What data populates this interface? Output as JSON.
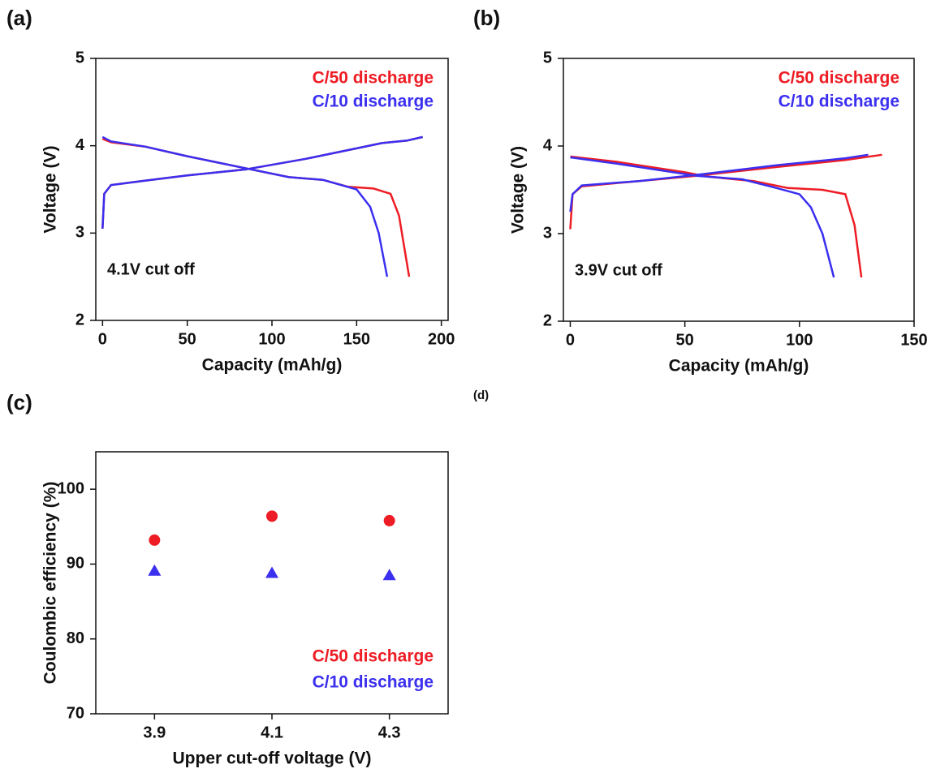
{
  "panel_d_label": "(d)",
  "chart_data": [
    {
      "type": "line",
      "panel_label": "(a)",
      "xlabel": "Capacity (mAh/g)",
      "ylabel": "Voltage (V)",
      "annotation": "4.1V cut off",
      "xlim": [
        -4,
        204
      ],
      "ylim": [
        2,
        5
      ],
      "xticks": [
        0,
        50,
        100,
        150,
        200
      ],
      "yticks": [
        2,
        3,
        4,
        5
      ],
      "legend": "upper right",
      "series": [
        {
          "name": "C/50 discharge",
          "color": "#ee1c24",
          "x": [
            0,
            1,
            5,
            25,
            50,
            85,
            120,
            150,
            165,
            180,
            189,
            null,
            0,
            5,
            25,
            50,
            85,
            110,
            130,
            145,
            160,
            170,
            175,
            181
          ],
          "values": [
            3.05,
            3.45,
            3.55,
            3.6,
            3.66,
            3.73,
            3.85,
            3.97,
            4.03,
            4.06,
            4.1,
            null,
            4.08,
            4.04,
            3.99,
            3.88,
            3.74,
            3.64,
            3.61,
            3.53,
            3.51,
            3.45,
            3.2,
            2.5
          ]
        },
        {
          "name": "C/10 discharge",
          "color": "#3b2ff0",
          "x": [
            0,
            1,
            5,
            25,
            50,
            85,
            120,
            150,
            165,
            180,
            189,
            null,
            0,
            5,
            25,
            50,
            85,
            110,
            130,
            150,
            158,
            163,
            168
          ],
          "values": [
            3.05,
            3.45,
            3.55,
            3.6,
            3.66,
            3.73,
            3.85,
            3.97,
            4.03,
            4.06,
            4.1,
            null,
            4.1,
            4.05,
            3.99,
            3.88,
            3.74,
            3.64,
            3.61,
            3.5,
            3.3,
            3.0,
            2.5
          ]
        }
      ]
    },
    {
      "type": "line",
      "panel_label": "(b)",
      "xlabel": "Capacity (mAh/g)",
      "ylabel": "Voltage (V)",
      "annotation": "3.9V cut off",
      "xlim": [
        -3,
        150
      ],
      "ylim": [
        2,
        5
      ],
      "xticks": [
        0,
        50,
        100,
        150
      ],
      "yticks": [
        2,
        3,
        4,
        5
      ],
      "legend": "upper right",
      "series": [
        {
          "name": "C/50 discharge",
          "color": "#ee1c24",
          "x": [
            0,
            1,
            5,
            30,
            55,
            90,
            120,
            136,
            null,
            0,
            20,
            50,
            60,
            80,
            95,
            110,
            120,
            124,
            127
          ],
          "values": [
            3.05,
            3.45,
            3.54,
            3.6,
            3.66,
            3.76,
            3.84,
            3.9,
            null,
            3.88,
            3.82,
            3.7,
            3.65,
            3.6,
            3.52,
            3.5,
            3.45,
            3.1,
            2.5
          ]
        },
        {
          "name": "C/10 discharge",
          "color": "#3b2ff0",
          "x": [
            0,
            1,
            5,
            30,
            55,
            90,
            120,
            130,
            null,
            0,
            20,
            55,
            75,
            90,
            100,
            105,
            110,
            115
          ],
          "values": [
            3.25,
            3.45,
            3.55,
            3.6,
            3.67,
            3.78,
            3.86,
            3.9,
            null,
            3.87,
            3.8,
            3.66,
            3.62,
            3.52,
            3.45,
            3.3,
            3.0,
            2.5
          ]
        }
      ]
    },
    {
      "type": "scatter",
      "panel_label": "(c)",
      "xlabel": "Upper cut-off voltage (V)",
      "ylabel": "Coulombic efficiency (%)",
      "categories": [
        "3.9",
        "4.1",
        "4.3"
      ],
      "ylim": [
        70,
        105
      ],
      "yticks": [
        70,
        80,
        90,
        100
      ],
      "legend": "lower right",
      "series": [
        {
          "name": "C/50 discharge",
          "color": "#ee1c24",
          "marker": "circle",
          "values": [
            93.2,
            96.4,
            95.8
          ]
        },
        {
          "name": "C/10 discharge",
          "color": "#3b2ff0",
          "marker": "triangle",
          "values": [
            89.1,
            88.8,
            88.5
          ]
        }
      ]
    }
  ]
}
